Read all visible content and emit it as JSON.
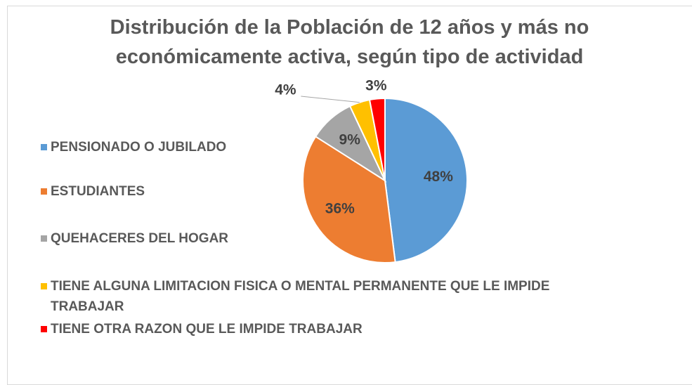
{
  "chart_data": {
    "type": "pie",
    "title": "Distribución de la Población de 12 años y más no económicamente activa, según tipo de actividad",
    "categories": [
      "PENSIONADO O JUBILADO",
      "ESTUDIANTES",
      "QUEHACERES DEL HOGAR",
      "TIENE ALGUNA LIMITACION FISICA O MENTAL PERMANENTE QUE LE IMPIDE TRABAJAR",
      "TIENE OTRA RAZON QUE LE IMPIDE TRABAJAR"
    ],
    "values": [
      48,
      36,
      9,
      4,
      3
    ],
    "value_labels": [
      "48%",
      "36%",
      "9%",
      "4%",
      "3%"
    ],
    "colors": [
      "#5b9bd5",
      "#ed7d31",
      "#a5a5a5",
      "#ffc000",
      "#ff0000"
    ],
    "legend": "left"
  }
}
